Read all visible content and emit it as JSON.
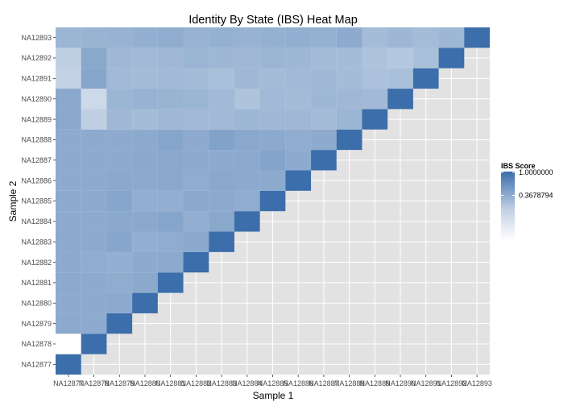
{
  "chart_data": {
    "type": "heatmap",
    "title": "Identity By State (IBS) Heat Map",
    "xlabel": "Sample 1",
    "ylabel": "Sample 2",
    "samples": [
      "NA12877",
      "NA12878",
      "NA12879",
      "NA12880",
      "NA12881",
      "NA12882",
      "NA12883",
      "NA12884",
      "NA12885",
      "NA12886",
      "NA12887",
      "NA12888",
      "NA12889",
      "NA12890",
      "NA12891",
      "NA12892",
      "NA12893"
    ],
    "x_tick_labels": [
      "NA12877",
      "NA12878",
      "NA12879",
      "NA12880",
      "NA12881",
      "NA12882",
      "NA12883",
      "NA12884",
      "NA12885",
      "NA12886",
      "NA12887",
      "NA12888",
      "NA12889",
      "NA12890",
      "NA12891",
      "NA12892",
      "NA12893"
    ],
    "y_tick_labels": [
      "NA12877",
      "NA12878",
      "NA12879",
      "NA12880",
      "NA12881",
      "NA12882",
      "NA12883",
      "NA12884",
      "NA12885",
      "NA12886",
      "NA12887",
      "NA12888",
      "NA12889",
      "NA12890",
      "NA12891",
      "NA12892",
      "NA12893"
    ],
    "value_range": [
      0.0,
      1.0
    ],
    "values": [
      [
        1.0
      ],
      [
        0.0,
        1.0
      ],
      [
        0.28,
        0.27,
        1.0
      ],
      [
        0.27,
        0.27,
        0.28,
        1.0
      ],
      [
        0.28,
        0.27,
        0.26,
        0.29,
        1.0
      ],
      [
        0.27,
        0.26,
        0.24,
        0.27,
        0.28,
        1.0
      ],
      [
        0.28,
        0.27,
        0.31,
        0.24,
        0.26,
        0.29,
        1.0
      ],
      [
        0.27,
        0.27,
        0.29,
        0.29,
        0.32,
        0.25,
        0.3,
        1.0
      ],
      [
        0.28,
        0.27,
        0.31,
        0.25,
        0.25,
        0.29,
        0.28,
        0.26,
        1.0
      ],
      [
        0.27,
        0.27,
        0.29,
        0.28,
        0.3,
        0.26,
        0.3,
        0.28,
        0.28,
        1.0
      ],
      [
        0.27,
        0.27,
        0.27,
        0.29,
        0.3,
        0.27,
        0.27,
        0.28,
        0.33,
        0.27,
        1.0
      ],
      [
        0.27,
        0.27,
        0.27,
        0.28,
        0.32,
        0.27,
        0.35,
        0.3,
        0.28,
        0.26,
        0.27,
        1.0
      ],
      [
        0.3,
        0.07,
        0.18,
        0.16,
        0.18,
        0.17,
        0.17,
        0.19,
        0.18,
        0.18,
        0.16,
        0.2,
        1.0
      ],
      [
        0.3,
        0.04,
        0.2,
        0.22,
        0.21,
        0.2,
        0.17,
        0.12,
        0.17,
        0.16,
        0.19,
        0.18,
        0.17,
        1.0
      ],
      [
        0.06,
        0.31,
        0.17,
        0.16,
        0.17,
        0.16,
        0.14,
        0.18,
        0.16,
        0.17,
        0.18,
        0.16,
        0.13,
        0.14,
        1.0
      ],
      [
        0.07,
        0.3,
        0.18,
        0.17,
        0.18,
        0.2,
        0.19,
        0.18,
        0.2,
        0.19,
        0.16,
        0.16,
        0.12,
        0.1,
        0.14,
        1.0
      ],
      [
        0.2,
        0.21,
        0.22,
        0.24,
        0.26,
        0.22,
        0.23,
        0.22,
        0.23,
        0.25,
        0.23,
        0.27,
        0.16,
        0.19,
        0.16,
        0.19,
        1.0
      ]
    ],
    "legend": {
      "title": "IBS Score",
      "position": "right",
      "breaks": [
        1.0,
        0.3678794
      ],
      "labels": [
        "1.0000000",
        "0.3678794"
      ]
    },
    "colors": {
      "high": "#3B6EAB",
      "low": "#FFFFFF",
      "panel_background": "#E2E2E2",
      "grid": "#FFFFFF",
      "tick_label": "#4D4D4D"
    },
    "grid": true
  }
}
